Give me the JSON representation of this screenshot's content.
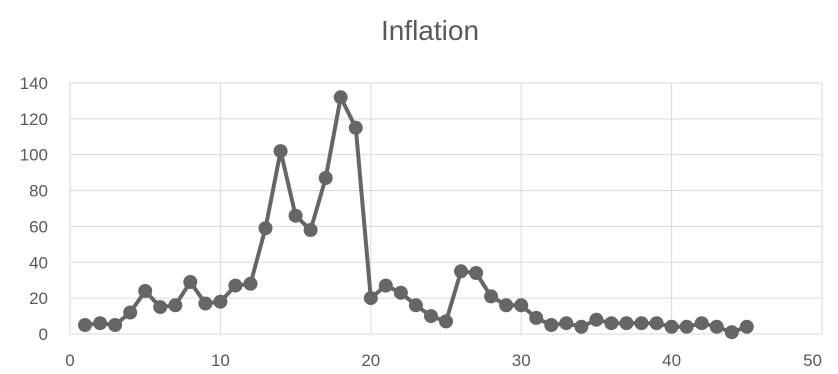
{
  "chart_data": {
    "type": "scatter",
    "title": "Inflation",
    "xlabel": "",
    "ylabel": "",
    "xlim": [
      0,
      50
    ],
    "ylim": [
      0,
      140
    ],
    "x_ticks": [
      0,
      10,
      20,
      30,
      40,
      50
    ],
    "y_ticks": [
      0,
      20,
      40,
      60,
      80,
      100,
      120,
      140
    ],
    "grid": true,
    "series_color": "#666666",
    "x": [
      1,
      2,
      3,
      4,
      5,
      6,
      7,
      8,
      9,
      10,
      11,
      12,
      13,
      14,
      15,
      16,
      17,
      18,
      19,
      20,
      21,
      22,
      23,
      24,
      25,
      26,
      27,
      28,
      29,
      30,
      31,
      32,
      33,
      34,
      35,
      36,
      37,
      38,
      39,
      40,
      41,
      42,
      43,
      44,
      45
    ],
    "y": [
      5,
      6,
      5,
      12,
      24,
      15,
      16,
      29,
      17,
      18,
      27,
      28,
      59,
      102,
      66,
      58,
      87,
      132,
      115,
      20,
      27,
      23,
      16,
      10,
      7,
      35,
      34,
      21,
      16,
      16,
      9,
      5,
      6,
      4,
      8,
      6,
      6,
      6,
      6,
      4,
      4,
      6,
      4,
      1,
      4
    ]
  }
}
